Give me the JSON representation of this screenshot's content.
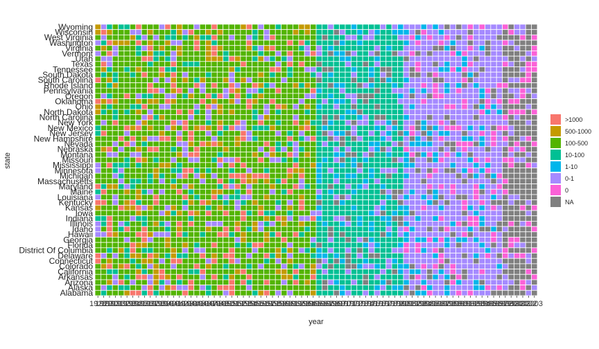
{
  "chart_data": {
    "type": "heatmap",
    "xlabel": "year",
    "ylabel": "state",
    "states_top_to_bottom": [
      "Wyoming",
      "Wisconsin",
      "West Virginia",
      "Washington",
      "Virginia",
      "Vermont",
      "Utah",
      "Texas",
      "Tennessee",
      "South Dakota",
      "South Carolina",
      "Rhode Island",
      "Pennsylvania",
      "Oregon",
      "Oklahoma",
      "Ohio",
      "North Dakota",
      "North Carolina",
      "New York",
      "New Mexico",
      "New Jersey",
      "New Hampshire",
      "Nevada",
      "Nebraska",
      "Montana",
      "Missouri",
      "Mississippi",
      "Minnesota",
      "Michigan",
      "Massachusetts",
      "Maryland",
      "Maine",
      "Louisiana",
      "Kentucky",
      "Kansas",
      "Iowa",
      "Indiana",
      "Illinois",
      "Idaho",
      "Hawaii",
      "Georgia",
      "Florida",
      "District Of Columbia",
      "Delaware",
      "Connecticut",
      "Colorado",
      "California",
      "Arkansas",
      "Arizona",
      "Alaska",
      "Alabama"
    ],
    "year_range": [
      1928,
      2003
    ],
    "x_tick_labels": [
      "1928",
      "1929",
      "1930",
      "1931",
      "1932",
      "1933",
      "1934",
      "1935",
      "1936",
      "1937",
      "1938",
      "1939",
      "1940",
      "1941",
      "1942",
      "1943",
      "1944",
      "1945",
      "1946",
      "1947",
      "1948",
      "1949",
      "1950",
      "1951",
      "1952",
      "1953",
      "1954",
      "1955",
      "1956",
      "1957",
      "1958",
      "1959",
      "1960",
      "1961",
      "1962",
      "1963",
      "1964",
      "1965",
      "1966",
      "1967",
      "1968",
      "1969",
      "1970",
      "1971",
      "1972",
      "1973",
      "1974",
      "1975",
      "1976",
      "1977",
      "1978",
      "1979",
      "1980",
      "1981",
      "1982",
      "1983",
      "1984",
      "1985",
      "1986",
      "1987",
      "1988",
      "1989",
      "1990",
      "1991",
      "1992",
      "1993",
      "1994",
      "1995",
      "1996",
      "1997",
      "1998",
      "1999",
      "2000",
      "2001",
      "2002",
      "2003"
    ],
    "legend": {
      "categories": [
        ">1000",
        "500-1000",
        "100-500",
        "10-100",
        "1-10",
        "0-1",
        "0",
        "NA"
      ],
      "colors": [
        "#F8766D",
        "#C49A00",
        "#53B400",
        "#00C094",
        "#00B6EB",
        "#A58AFF",
        "#FB61D7",
        "#808080"
      ]
    },
    "tile_border_color": "#ffffff",
    "background": "#ffffff",
    "category_by_period": [
      {
        "years": [
          1928,
          1965
        ],
        "typical": "100-500",
        "mixed_with": [
          ">1000",
          "500-1000",
          "10-100",
          "0-1"
        ]
      },
      {
        "years": [
          1966,
          1980
        ],
        "typical": "10-100",
        "mixed_with": [
          "1-10",
          "0-1",
          "NA"
        ]
      },
      {
        "years": [
          1981,
          1997
        ],
        "typical": "0-1",
        "mixed_with": [
          "1-10",
          "NA",
          "0"
        ]
      },
      {
        "years": [
          1998,
          2003
        ],
        "typical": "NA",
        "mixed_with": [
          "0-1",
          "0"
        ]
      }
    ]
  }
}
